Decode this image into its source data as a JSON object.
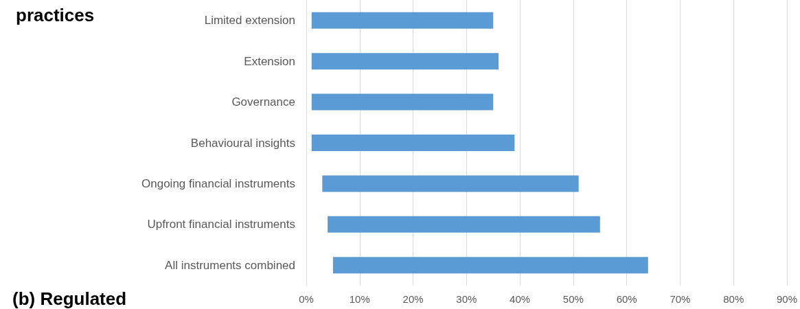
{
  "chart_data": {
    "type": "bar",
    "orientation": "horizontal",
    "title": "practices",
    "annotations": [
      "(b) Regulated"
    ],
    "categories": [
      "Limited extension",
      "Extension",
      "Governance",
      "Behavioural insights",
      "Ongoing financial instruments",
      "Upfront financial instruments",
      "All instruments combined"
    ],
    "base": [
      1,
      1,
      1,
      1,
      3,
      4,
      5
    ],
    "values": [
      34,
      35,
      34,
      38,
      48,
      51,
      59
    ],
    "color": "#5b9bd5",
    "xlim": [
      0,
      90
    ],
    "xticks": [
      {
        "value": 0,
        "label": "0%"
      },
      {
        "value": 10,
        "label": "10%"
      },
      {
        "value": 20,
        "label": "20%"
      },
      {
        "value": 30,
        "label": "30%"
      },
      {
        "value": 40,
        "label": "40%"
      },
      {
        "value": 50,
        "label": "50%"
      },
      {
        "value": 60,
        "label": "60%"
      },
      {
        "value": 70,
        "label": "70%"
      },
      {
        "value": 80,
        "label": "80%"
      },
      {
        "value": 90,
        "label": "90%"
      }
    ],
    "grid": "x"
  }
}
